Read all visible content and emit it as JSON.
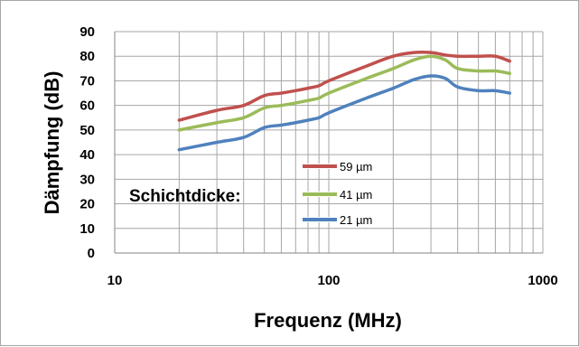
{
  "chart_data": {
    "type": "line",
    "title": "",
    "xlabel": "Frequenz (MHz)",
    "ylabel": "Dämpfung (dB)",
    "x_scale": "log",
    "xlim": [
      10,
      1000
    ],
    "ylim": [
      0,
      90
    ],
    "x_ticks": [
      "10",
      "100",
      "1000"
    ],
    "y_ticks": [
      "0",
      "10",
      "20",
      "30",
      "40",
      "50",
      "60",
      "70",
      "80",
      "90"
    ],
    "grid": true,
    "legend_title": "Schichtdicke:",
    "legend_position": "center-left",
    "series": [
      {
        "name": "59 µm",
        "color": "#c0504d",
        "x": [
          20,
          30,
          40,
          50,
          60,
          70,
          80,
          90,
          100,
          150,
          200,
          250,
          300,
          350,
          400,
          500,
          600,
          700
        ],
        "y": [
          54,
          58,
          60,
          64,
          65,
          66,
          67,
          68,
          70,
          76,
          80,
          81.5,
          81.5,
          80.5,
          80,
          80,
          80,
          78
        ]
      },
      {
        "name": "41 µm",
        "color": "#9bbb59",
        "x": [
          20,
          30,
          40,
          50,
          60,
          70,
          80,
          90,
          100,
          150,
          200,
          250,
          300,
          350,
          400,
          500,
          600,
          700
        ],
        "y": [
          50,
          53,
          55,
          59,
          60,
          61,
          62,
          63,
          65,
          71,
          75,
          78.5,
          80,
          78.5,
          75,
          74,
          74,
          73
        ]
      },
      {
        "name": "21 µm",
        "color": "#4f81bd",
        "x": [
          20,
          30,
          40,
          50,
          60,
          70,
          80,
          90,
          100,
          150,
          200,
          250,
          300,
          350,
          400,
          500,
          600,
          700
        ],
        "y": [
          42,
          45,
          47,
          51,
          52,
          53,
          54,
          55,
          57,
          63,
          67,
          70.5,
          72,
          71,
          67.5,
          66,
          66,
          65
        ]
      }
    ]
  }
}
